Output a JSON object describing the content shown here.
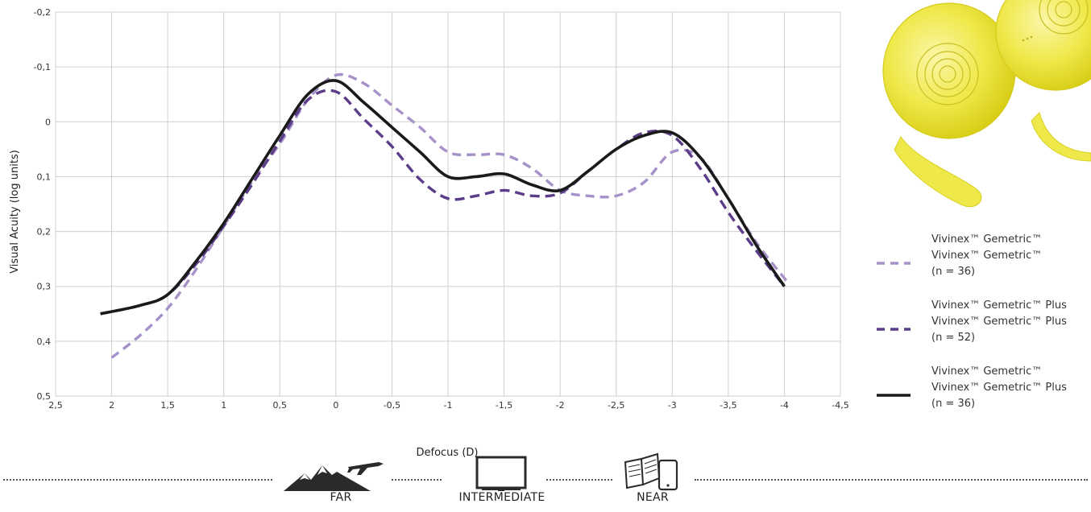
{
  "chart_data": {
    "type": "line",
    "xlabel": "Defocus (D)",
    "ylabel": "Visual Acuity (log units)",
    "xlim": [
      2.5,
      -4.5
    ],
    "ylim": [
      -0.2,
      0.5
    ],
    "y_inverted": true,
    "grid": true,
    "x_ticks": [
      {
        "v": 2.5,
        "label": "2,5"
      },
      {
        "v": 2,
        "label": "2"
      },
      {
        "v": 1.5,
        "label": "1,5"
      },
      {
        "v": 1,
        "label": "1"
      },
      {
        "v": 0.5,
        "label": "0,5"
      },
      {
        "v": 0,
        "label": "0"
      },
      {
        "v": -0.5,
        "label": "-0,5"
      },
      {
        "v": -1,
        "label": "-1"
      },
      {
        "v": -1.5,
        "label": "-1,5"
      },
      {
        "v": -2,
        "label": "-2"
      },
      {
        "v": -2.5,
        "label": "-2,5"
      },
      {
        "v": -3,
        "label": "-3"
      },
      {
        "v": -3.5,
        "label": "-3,5"
      },
      {
        "v": -4,
        "label": "-4"
      },
      {
        "v": -4.5,
        "label": "-4,5"
      }
    ],
    "y_ticks": [
      {
        "v": -0.2,
        "label": "-0,2"
      },
      {
        "v": -0.1,
        "label": "-0,1"
      },
      {
        "v": 0,
        "label": "0"
      },
      {
        "v": 0.1,
        "label": "0,1"
      },
      {
        "v": 0.2,
        "label": "0,2"
      },
      {
        "v": 0.3,
        "label": "0,3"
      },
      {
        "v": 0.4,
        "label": "0,4"
      },
      {
        "v": 0.5,
        "label": "0,5"
      }
    ],
    "series": [
      {
        "color": "#a692c8",
        "dash": "dashed-light",
        "x": [
          2.0,
          1.75,
          1.5,
          1.25,
          1.0,
          0.75,
          0.5,
          0.25,
          0.0,
          -0.25,
          -0.5,
          -0.75,
          -1.0,
          -1.25,
          -1.5,
          -1.75,
          -2.0,
          -2.25,
          -2.5,
          -2.75,
          -3.0,
          -3.25,
          -3.5,
          -3.75,
          -4.0,
          -4.05
        ],
        "y": [
          0.43,
          0.39,
          0.34,
          0.27,
          0.19,
          0.11,
          0.04,
          -0.04,
          -0.085,
          -0.07,
          -0.03,
          0.01,
          0.055,
          0.06,
          0.06,
          0.085,
          0.125,
          0.135,
          0.135,
          0.11,
          0.055,
          0.065,
          0.14,
          0.22,
          0.285,
          0.295
        ]
      },
      {
        "color": "#5b3c88",
        "dash": "dashed-dark",
        "x": [
          2.1,
          1.75,
          1.5,
          1.25,
          1.0,
          0.75,
          0.5,
          0.25,
          0.0,
          -0.25,
          -0.5,
          -0.75,
          -1.0,
          -1.25,
          -1.5,
          -1.75,
          -2.0,
          -2.25,
          -2.5,
          -2.75,
          -3.0,
          -3.25,
          -3.5,
          -3.75,
          -4.0
        ],
        "y": [
          0.35,
          0.335,
          0.315,
          0.26,
          0.19,
          0.115,
          0.035,
          -0.04,
          -0.055,
          -0.005,
          0.045,
          0.105,
          0.14,
          0.135,
          0.125,
          0.135,
          0.13,
          0.09,
          0.05,
          0.02,
          0.025,
          0.085,
          0.165,
          0.235,
          0.3
        ]
      },
      {
        "color": "#1a1a1a",
        "dash": "solid",
        "x": [
          2.1,
          1.75,
          1.5,
          1.25,
          1.0,
          0.75,
          0.5,
          0.25,
          0.0,
          -0.25,
          -0.5,
          -0.75,
          -1.0,
          -1.25,
          -1.5,
          -1.75,
          -2.0,
          -2.25,
          -2.5,
          -2.75,
          -3.0,
          -3.25,
          -3.5,
          -3.75,
          -4.0
        ],
        "y": [
          0.35,
          0.335,
          0.315,
          0.255,
          0.185,
          0.105,
          0.025,
          -0.05,
          -0.075,
          -0.035,
          0.01,
          0.055,
          0.1,
          0.1,
          0.095,
          0.115,
          0.125,
          0.09,
          0.05,
          0.025,
          0.02,
          0.065,
          0.14,
          0.225,
          0.3
        ]
      }
    ]
  },
  "legend": [
    {
      "lines": [
        "Vivinex™ Gemetric™",
        "Vivinex™ Gemetric™",
        "(n = 36)"
      ],
      "color": "#a692c8",
      "style": "dashed-light"
    },
    {
      "lines": [
        "Vivinex™ Gemetric™ Plus",
        "Vivinex™ Gemetric™ Plus",
        "(n = 52)"
      ],
      "color": "#5b3c88",
      "style": "dashed-dark"
    },
    {
      "lines": [
        "Vivinex™ Gemetric™",
        "Vivinex™ Gemetric™ Plus",
        "(n = 36)"
      ],
      "color": "#1a1a1a",
      "style": "solid"
    }
  ],
  "distances": {
    "far": {
      "label": "FAR",
      "icon": "mountain-plane-icon"
    },
    "intermediate": {
      "label": "INTERMEDIATE",
      "icon": "monitor-icon"
    },
    "near": {
      "label": "NEAR",
      "icon": "book-phone-icon"
    }
  },
  "product_image": {
    "icon": "yellow-intraocular-lens-icon",
    "color": "#e8e23a"
  }
}
